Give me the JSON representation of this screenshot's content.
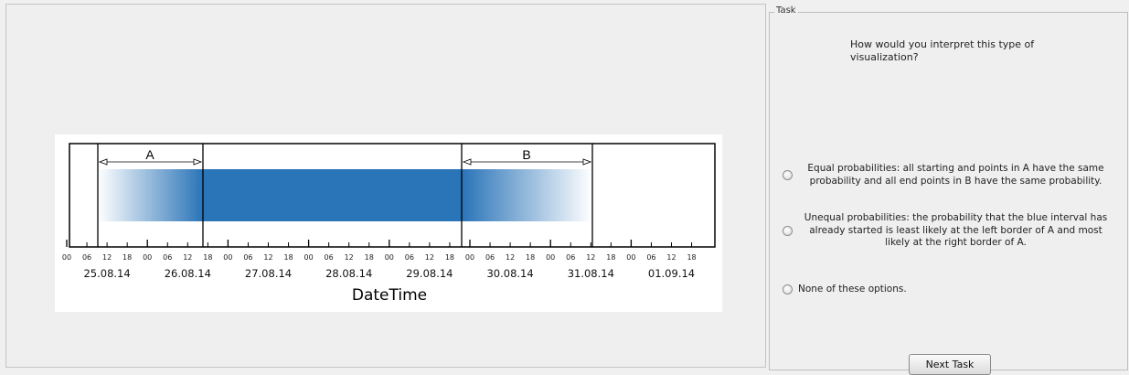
{
  "task": {
    "legend": "Task",
    "question": "How would you interpret this type of visualization?",
    "options": [
      {
        "label": "Equal probabilities: all starting and points in A have the same probability and all end points in B have the same probability.",
        "selected": false
      },
      {
        "label": "Unequal probabilities: the probability that the blue interval has already started is least likely at the left border of A and most likely at the right border of A.",
        "selected": false
      },
      {
        "label": "None of these options.",
        "selected": false
      }
    ],
    "next_button": "Next Task"
  },
  "visualization": {
    "xlabel": "DateTime",
    "interval_color": "#2a74b8",
    "region_labels": [
      "A",
      "B"
    ],
    "hour_ticks": [
      "00",
      "06",
      "12",
      "18",
      "00",
      "06",
      "12",
      "18",
      "00",
      "06",
      "12",
      "18",
      "00",
      "06",
      "12",
      "18",
      "00",
      "06",
      "12",
      "18",
      "00",
      "06",
      "12",
      "18",
      "00",
      "06",
      "12",
      "18",
      "00",
      "06",
      "12",
      "18"
    ],
    "date_labels": [
      "25.08.14",
      "26.08.14",
      "27.08.14",
      "28.08.14",
      "29.08.14",
      "30.08.14",
      "31.08.14",
      "01.09.14"
    ]
  }
}
